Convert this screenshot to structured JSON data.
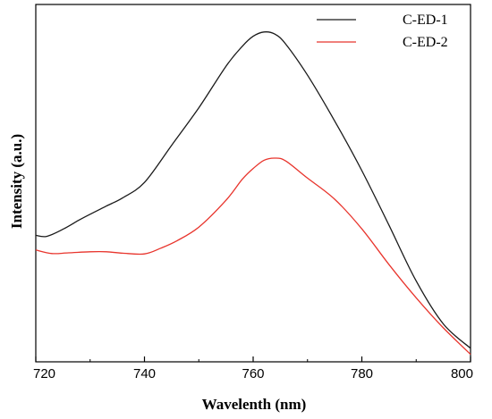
{
  "chart_data": {
    "type": "line",
    "xlabel": "Wavelenth (nm)",
    "ylabel": "Intensity (a.u.)",
    "xlim": [
      720,
      800
    ],
    "ylim": [
      0,
      1
    ],
    "x_ticks": [
      720,
      740,
      760,
      780,
      800
    ],
    "y_ticks_labeled": false,
    "grid": false,
    "legend_position": "top-right",
    "series": [
      {
        "name": "C-ED-1",
        "color": "#1a1a1a",
        "x": [
          720,
          722,
          725,
          728,
          730,
          733,
          736,
          740,
          745,
          750,
          755,
          758,
          760,
          762,
          764,
          766,
          770,
          775,
          780,
          785,
          790,
          795,
          800
        ],
        "y": [
          0.354,
          0.351,
          0.371,
          0.397,
          0.413,
          0.436,
          0.459,
          0.502,
          0.606,
          0.711,
          0.827,
          0.883,
          0.911,
          0.923,
          0.917,
          0.889,
          0.802,
          0.674,
          0.535,
          0.382,
          0.226,
          0.106,
          0.038
        ]
      },
      {
        "name": "C-ED-2",
        "color": "#e8342c",
        "x": [
          720,
          723,
          726,
          730,
          733,
          736,
          740,
          743,
          746,
          750,
          755,
          758,
          760,
          762,
          764,
          766,
          770,
          775,
          780,
          785,
          790,
          795,
          800
        ],
        "y": [
          0.313,
          0.303,
          0.305,
          0.308,
          0.308,
          0.304,
          0.302,
          0.318,
          0.339,
          0.377,
          0.452,
          0.511,
          0.541,
          0.564,
          0.57,
          0.562,
          0.514,
          0.455,
          0.372,
          0.272,
          0.179,
          0.095,
          0.021
        ]
      }
    ]
  }
}
